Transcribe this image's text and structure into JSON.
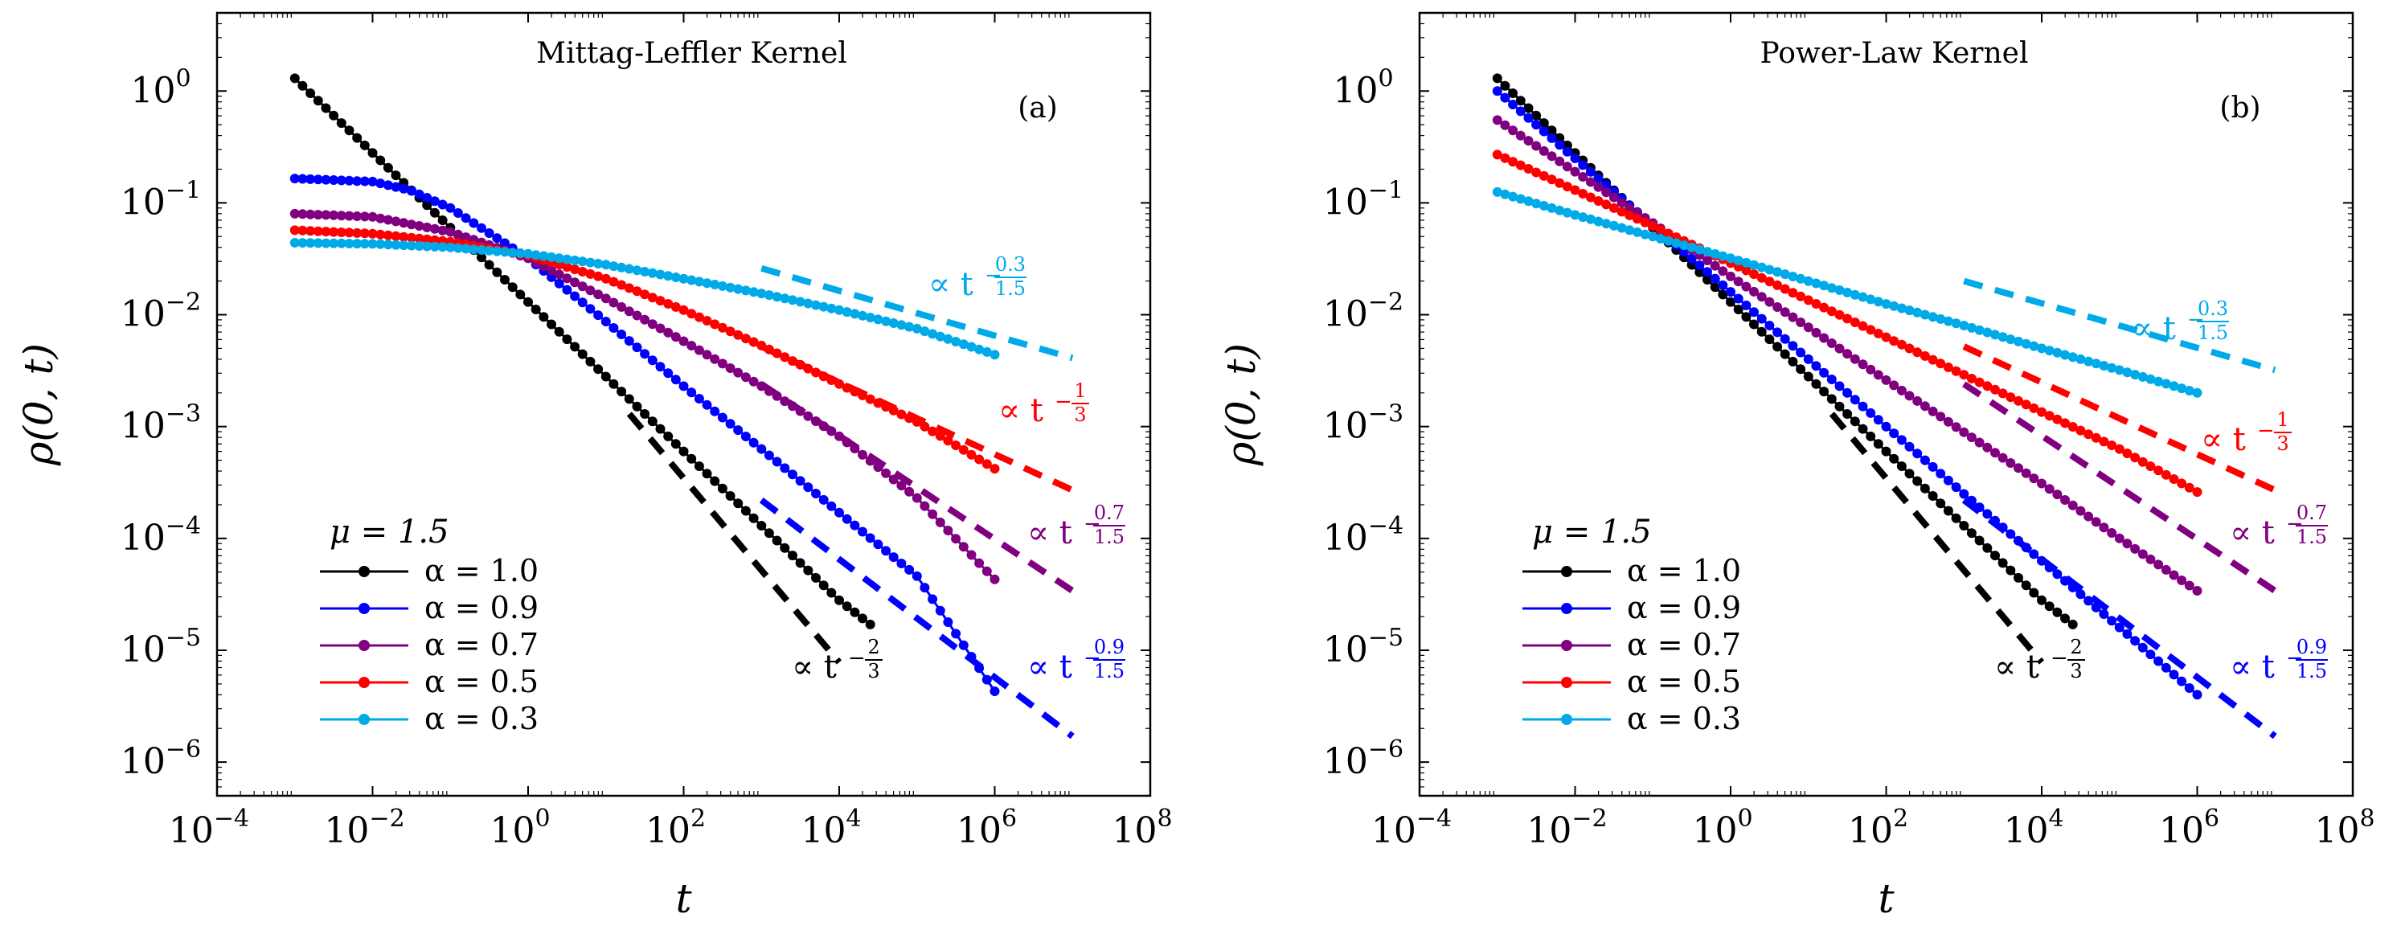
{
  "colors": {
    "alpha_1_0": "#000000",
    "alpha_0_9": "#0000ff",
    "alpha_0_7": "#800080",
    "alpha_0_5": "#ff0000",
    "alpha_0_3": "#00aae8"
  },
  "chart_data": [
    {
      "type": "line",
      "title": "Mittag-Leffler Kernel",
      "panel_tag": "(a)",
      "xlabel": "t",
      "ylabel": "ρ(0, t)",
      "xscale": "log",
      "yscale": "log",
      "xlim": [
        0.0001,
        100000000
      ],
      "ylim": [
        5e-07,
        5
      ],
      "x_ticks": [
        "10^-4",
        "10^-2",
        "10^0",
        "10^2",
        "10^4",
        "10^6",
        "10^8"
      ],
      "y_ticks": [
        "10^-6",
        "10^-5",
        "10^-4",
        "10^-3",
        "10^-2",
        "10^-1",
        "10^0"
      ],
      "legend_header": "μ = 1.5",
      "legend_position": "bottom-left",
      "series": [
        {
          "name": "α = 1.0",
          "color": "#000000",
          "x": [
            0.001,
            0.01,
            0.1,
            1,
            10,
            100,
            1000,
            10000,
            31600
          ],
          "y": [
            1.3,
            0.28,
            0.06,
            0.013,
            0.0028,
            0.0006,
            0.00013,
            2.8e-05,
            1.5e-05
          ]
        },
        {
          "name": "α = 0.9",
          "color": "#0000ff",
          "x": [
            0.001,
            0.01,
            0.03,
            0.1,
            0.3,
            1,
            10,
            100,
            1000,
            10000,
            100000,
            1000000
          ],
          "y": [
            0.165,
            0.155,
            0.13,
            0.09,
            0.055,
            0.032,
            0.0087,
            0.0023,
            0.00063,
            0.00017,
            4.6e-05,
            4.3e-06
          ]
        },
        {
          "name": "α = 0.7",
          "color": "#800080",
          "x": [
            0.001,
            0.01,
            0.1,
            1,
            10,
            100,
            1000,
            10000,
            100000,
            1000000
          ],
          "y": [
            0.08,
            0.075,
            0.055,
            0.032,
            0.014,
            0.0058,
            0.0023,
            0.00082,
            0.00023,
            4.3e-05
          ]
        },
        {
          "name": "α = 0.5",
          "color": "#ff0000",
          "x": [
            0.001,
            0.01,
            0.1,
            1,
            10,
            100,
            1000,
            10000,
            100000,
            1000000
          ],
          "y": [
            0.057,
            0.053,
            0.045,
            0.034,
            0.021,
            0.011,
            0.0053,
            0.0024,
            0.0011,
            0.00042
          ]
        },
        {
          "name": "α = 0.3",
          "color": "#00aae8",
          "x": [
            0.001,
            0.01,
            0.1,
            1,
            10,
            100,
            1000,
            10000,
            100000,
            1000000
          ],
          "y": [
            0.044,
            0.043,
            0.04,
            0.035,
            0.028,
            0.021,
            0.0155,
            0.011,
            0.0075,
            0.0044
          ]
        }
      ],
      "asymptotes": [
        {
          "label_base": "∝ t",
          "exponent": "−2/3",
          "exp_num": "2",
          "exp_den": "3",
          "color": "#000000",
          "x": [
            20,
            10000
          ],
          "y": [
            0.0013,
            7.8e-06
          ]
        },
        {
          "label_base": "∝ t",
          "exponent": "−0.9/1.5",
          "exp_num": "0.9",
          "exp_den": "1.5",
          "color": "#0000ff",
          "x": [
            1000,
            10000000
          ],
          "y": [
            0.00022,
            1.7e-06
          ]
        },
        {
          "label_base": "∝ t",
          "exponent": "−0.7/1.5",
          "exp_num": "0.7",
          "exp_den": "1.5",
          "color": "#800080",
          "x": [
            1000,
            10000000
          ],
          "y": [
            0.0024,
            3.4e-05
          ]
        },
        {
          "label_base": "∝ t",
          "exponent": "−1/3",
          "exp_num": "1",
          "exp_den": "3",
          "color": "#ff0000",
          "x": [
            1000,
            10000000
          ],
          "y": [
            0.0052,
            0.00027
          ]
        },
        {
          "label_base": "∝ t",
          "exponent": "−0.3/1.5",
          "exp_num": "0.3",
          "exp_den": "1.5",
          "color": "#00aae8",
          "x": [
            1000,
            10000000
          ],
          "y": [
            0.026,
            0.0041
          ]
        }
      ]
    },
    {
      "type": "line",
      "title": "Power-Law Kernel",
      "panel_tag": "(b)",
      "xlabel": "t",
      "ylabel": "ρ(0, t)",
      "xscale": "log",
      "yscale": "log",
      "xlim": [
        0.0001,
        100000000
      ],
      "ylim": [
        5e-07,
        5
      ],
      "x_ticks": [
        "10^-4",
        "10^-2",
        "10^0",
        "10^2",
        "10^4",
        "10^6",
        "10^8"
      ],
      "y_ticks": [
        "10^-6",
        "10^-5",
        "10^-4",
        "10^-3",
        "10^-2",
        "10^-1",
        "10^0"
      ],
      "legend_header": "μ = 1.5",
      "legend_position": "bottom-left",
      "series": [
        {
          "name": "α = 1.0",
          "color": "#000000",
          "x": [
            0.001,
            0.01,
            0.1,
            1,
            10,
            100,
            1000,
            10000,
            31600
          ],
          "y": [
            1.3,
            0.28,
            0.06,
            0.013,
            0.0028,
            0.0006,
            0.00013,
            2.8e-05,
            1.5e-05
          ]
        },
        {
          "name": "α = 0.9",
          "color": "#0000ff",
          "x": [
            0.001,
            0.01,
            0.1,
            1,
            10,
            100,
            1000,
            10000,
            100000,
            1000000
          ],
          "y": [
            1.0,
            0.25,
            0.063,
            0.016,
            0.004,
            0.001,
            0.00025,
            6.3e-05,
            1.6e-05,
            4e-06
          ]
        },
        {
          "name": "α = 0.7",
          "color": "#800080",
          "x": [
            0.001,
            0.01,
            0.1,
            1,
            10,
            100,
            1000,
            10000,
            100000,
            1000000
          ],
          "y": [
            0.55,
            0.19,
            0.066,
            0.022,
            0.0077,
            0.0026,
            0.00089,
            0.00031,
            0.0001,
            3.4e-05
          ]
        },
        {
          "name": "α = 0.5",
          "color": "#ff0000",
          "x": [
            0.001,
            0.01,
            0.1,
            1,
            10,
            100,
            1000,
            10000,
            100000,
            1000000
          ],
          "y": [
            0.27,
            0.13,
            0.062,
            0.029,
            0.0135,
            0.0063,
            0.0029,
            0.00135,
            0.00063,
            0.00026
          ]
        },
        {
          "name": "α = 0.3",
          "color": "#00aae8",
          "x": [
            0.001,
            0.01,
            0.1,
            1,
            10,
            100,
            1000,
            10000,
            100000,
            1000000
          ],
          "y": [
            0.125,
            0.078,
            0.05,
            0.032,
            0.02,
            0.0125,
            0.008,
            0.005,
            0.0032,
            0.002
          ]
        }
      ],
      "asymptotes": [
        {
          "label_base": "∝ t",
          "exponent": "−2/3",
          "exp_num": "2",
          "exp_den": "3",
          "color": "#000000",
          "x": [
            20,
            10000
          ],
          "y": [
            0.0013,
            7.8e-06
          ]
        },
        {
          "label_base": "∝ t",
          "exponent": "−0.9/1.5",
          "exp_num": "0.9",
          "exp_den": "1.5",
          "color": "#0000ff",
          "x": [
            1000,
            10000000
          ],
          "y": [
            0.00022,
            1.7e-06
          ]
        },
        {
          "label_base": "∝ t",
          "exponent": "−0.7/1.5",
          "exp_num": "0.7",
          "exp_den": "1.5",
          "color": "#800080",
          "x": [
            1000,
            10000000
          ],
          "y": [
            0.0024,
            3.4e-05
          ]
        },
        {
          "label_base": "∝ t",
          "exponent": "−1/3",
          "exp_num": "1",
          "exp_den": "3",
          "color": "#ff0000",
          "x": [
            1000,
            10000000
          ],
          "y": [
            0.0052,
            0.00027
          ]
        },
        {
          "label_base": "∝ t",
          "exponent": "−0.3/1.5",
          "exp_num": "0.3",
          "exp_den": "1.5",
          "color": "#00aae8",
          "x": [
            1000,
            10000000
          ],
          "y": [
            0.02,
            0.0032
          ]
        }
      ]
    }
  ]
}
